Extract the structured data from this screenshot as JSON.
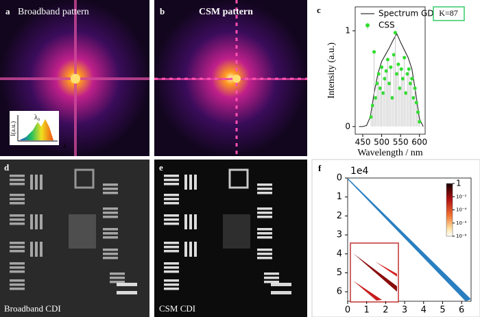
{
  "panels": {
    "a": {
      "label": "a",
      "title": "Broadband pattern",
      "inset": {
        "y_label": "I(a.u.)",
        "x_label": "λ",
        "peak_label": "λ₀"
      }
    },
    "b": {
      "label": "b",
      "title": "CSM pattern"
    },
    "d": {
      "label": "d",
      "caption": "Broadband CDI"
    },
    "e": {
      "label": "e",
      "caption": "CSM CDI"
    }
  },
  "chart_data": [
    {
      "type": "line",
      "panel_label": "c",
      "xlabel": "Wavelength / nm",
      "ylabel": "Intensity (a.u.)",
      "annotation": "K=87",
      "xlim": [
        430,
        615
      ],
      "xticks": [
        450,
        500,
        550,
        600
      ],
      "ylim": [
        -0.08,
        1.25
      ],
      "yticks": [
        0,
        1
      ],
      "legend": "upper left",
      "series": [
        {
          "name": "Spectrum GD",
          "color": "#333333",
          "x": [
            440,
            450,
            460,
            470,
            480,
            490,
            500,
            510,
            520,
            530,
            540,
            550,
            560,
            570,
            580,
            590,
            600,
            610
          ],
          "values": [
            0,
            0,
            0.01,
            0.1,
            0.35,
            0.55,
            0.68,
            0.75,
            0.82,
            0.9,
            0.97,
            0.88,
            0.8,
            0.72,
            0.6,
            0.35,
            0.08,
            0
          ]
        },
        {
          "name": "CSS",
          "color": "#33dd33",
          "style": "stem",
          "x": [
            472,
            476,
            480,
            484,
            488,
            492,
            496,
            500,
            504,
            508,
            512,
            516,
            520,
            524,
            528,
            532,
            536,
            540,
            544,
            548,
            552,
            556,
            560,
            564,
            568,
            572,
            576,
            580,
            584,
            588,
            592,
            596,
            600
          ],
          "values": [
            0.1,
            0.22,
            0.78,
            0.3,
            0.45,
            0.55,
            0.4,
            0.62,
            0.35,
            0.5,
            0.58,
            0.7,
            0.45,
            0.62,
            0.3,
            0.75,
            0.98,
            0.55,
            0.65,
            0.4,
            0.6,
            0.5,
            0.72,
            0.35,
            0.55,
            0.6,
            0.45,
            0.5,
            0.3,
            0.4,
            0.25,
            0.15,
            0.05
          ]
        }
      ]
    },
    {
      "type": "heatmap",
      "panel_label": "f",
      "offset_label": "1e4",
      "xlim": [
        0,
        6.5
      ],
      "ylim": [
        6.5,
        0
      ],
      "xticks": [
        0,
        1,
        2,
        3,
        4,
        5,
        6
      ],
      "yticks": [
        0,
        1,
        2,
        3,
        4,
        5,
        6
      ],
      "colorbar": {
        "log": true,
        "clim": [
          1e-08,
          1
        ],
        "ticks": [
          1,
          {
            "value": 0.01,
            "label": "10⁻²"
          },
          {
            "value": 0.0001,
            "label": "10⁻⁴"
          },
          {
            "value": 1e-06,
            "label": "10⁻⁶"
          },
          {
            "value": 1e-08,
            "label": "10⁻⁸"
          }
        ]
      }
    }
  ]
}
